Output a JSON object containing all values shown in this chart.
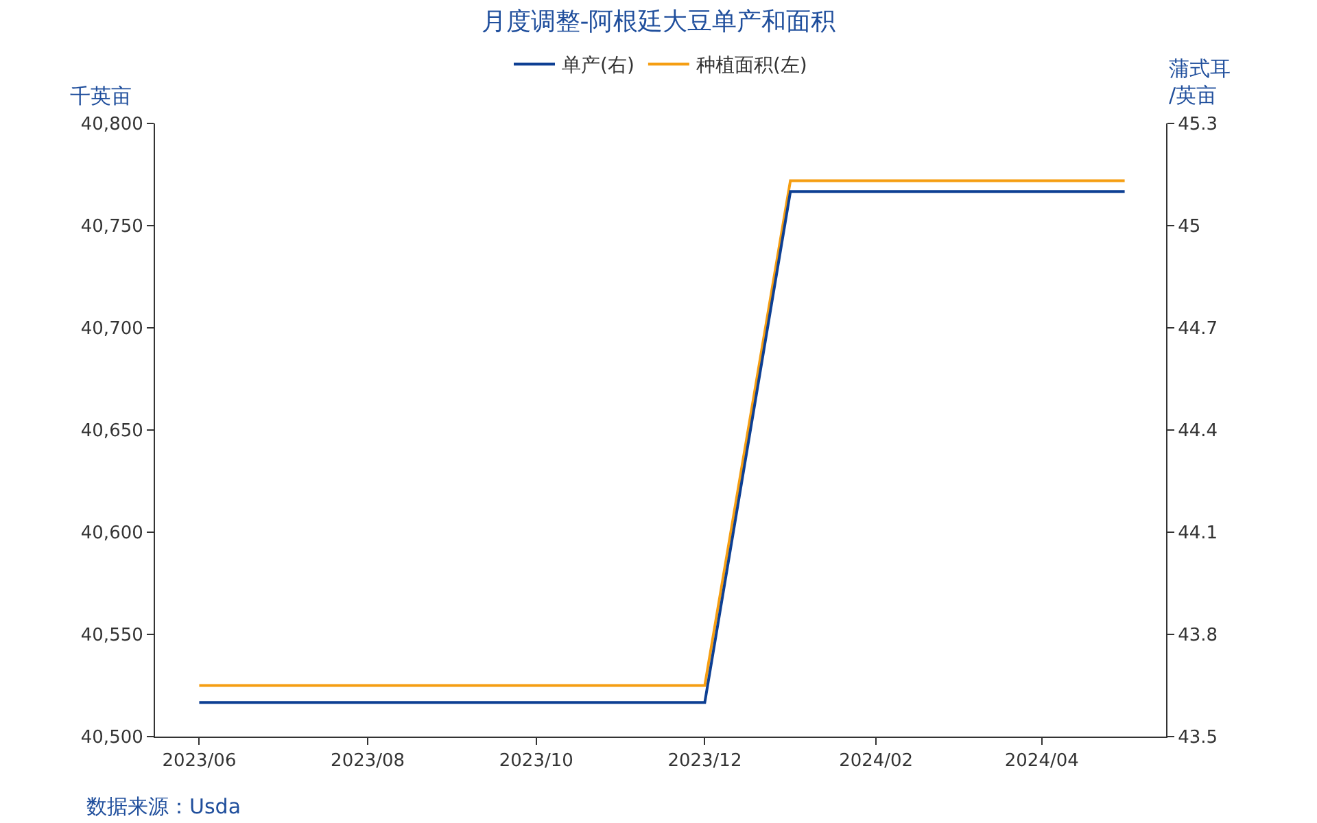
{
  "chart_data": {
    "type": "line",
    "title": "月度调整-阿根廷大豆单产和面积",
    "ylabel": "千英亩",
    "y2label": "蒲式耳\n/英亩",
    "x": [
      "2023-06",
      "2023-07",
      "2023-08",
      "2023-09",
      "2023-10",
      "2023-11",
      "2023-12",
      "2024-01",
      "2024-02",
      "2024-03",
      "2024-04",
      "2024-05"
    ],
    "series": [
      {
        "name": "单产(右)",
        "color": "#0d3f93",
        "axis": "y2",
        "values": [
          43.6,
          43.6,
          43.6,
          43.6,
          43.6,
          43.6,
          43.6,
          45.1,
          45.1,
          45.1,
          45.1,
          45.1
        ]
      },
      {
        "name": "种植面积(左)",
        "color": "#f59e12",
        "values": [
          40525,
          40525,
          40525,
          40525,
          40525,
          40525,
          40525,
          40772,
          40772,
          40772,
          40772,
          40772
        ]
      }
    ],
    "xlim": [
      "2023-05-16",
      "2024-05-16"
    ],
    "xticks": [
      {
        "value": "2023-06",
        "label": "2023/06"
      },
      {
        "value": "2023-08",
        "label": "2023/08"
      },
      {
        "value": "2023-10",
        "label": "2023/10"
      },
      {
        "value": "2023-12",
        "label": "2023/12"
      },
      {
        "value": "2024-02",
        "label": "2024/02"
      },
      {
        "value": "2024-04",
        "label": "2024/04"
      }
    ],
    "ylim": [
      40500,
      40800
    ],
    "yticks": [
      {
        "value": 40500,
        "label": "40,500"
      },
      {
        "value": 40550,
        "label": "40,550"
      },
      {
        "value": 40600,
        "label": "40,600"
      },
      {
        "value": 40650,
        "label": "40,650"
      },
      {
        "value": 40700,
        "label": "40,700"
      },
      {
        "value": 40750,
        "label": "40,750"
      },
      {
        "value": 40800,
        "label": "40,800"
      }
    ],
    "y2lim": [
      43.5,
      45.3
    ],
    "y2ticks": [
      43.5,
      43.8,
      44.1,
      44.4,
      44.7,
      45,
      45.3
    ],
    "legend": "top",
    "marker": "none",
    "line_style": "solid",
    "annotations": [
      "数据来源：Usda"
    ]
  }
}
